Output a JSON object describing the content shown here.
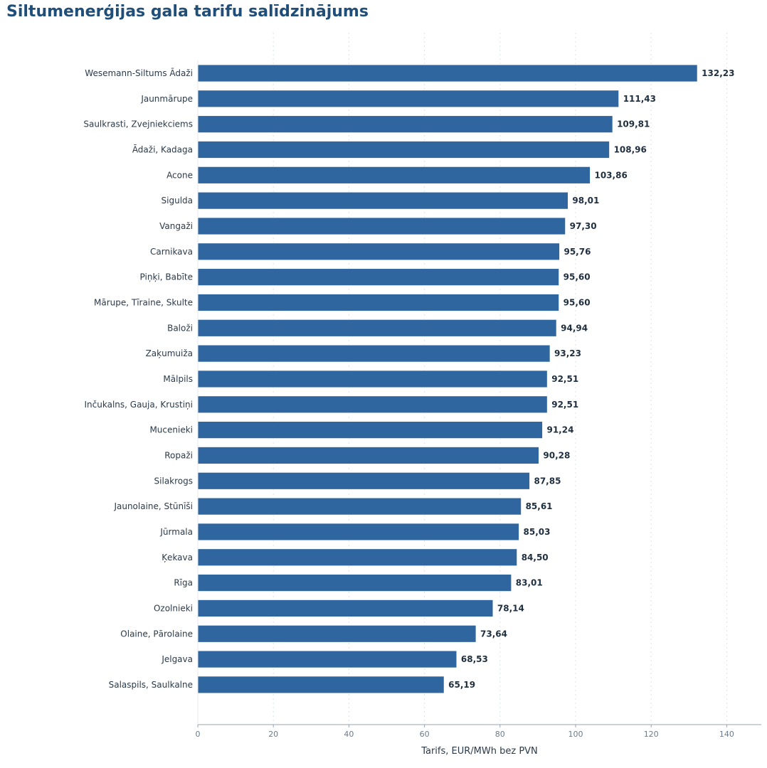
{
  "chart_data": {
    "type": "bar",
    "orientation": "horizontal",
    "title": "Siltumenerģijas gala tarifu salīdzinājums",
    "xlabel": "Tarifs, EUR/MWh bez PVN",
    "ylabel": "",
    "xlim": [
      0,
      150
    ],
    "xticks": [
      0,
      20,
      40,
      60,
      80,
      100,
      120,
      140
    ],
    "grid": "vertical dotted",
    "bar_color": "#30669f",
    "categories": [
      "Wesemann-Siltums Ādaži",
      "Jaunmārupe",
      "Saulkrasti, Zvejniekciems",
      "Ādaži, Kadaga",
      "Acone",
      "Sigulda",
      "Vangaži",
      "Carnikava",
      "Piņķi, Babīte",
      "Mārupe, Tīraine, Skulte",
      "Baloži",
      "Zaķumuiža",
      "Mālpils",
      "Inčukalns, Gauja, Krustiņi",
      "Mucenieki",
      "Ropaži",
      "Silakrogs",
      "Jaunolaine, Stūnīši",
      "Jūrmala",
      "Ķekava",
      "Rīga",
      "Ozolnieki",
      "Olaine, Pārolaine",
      "Jelgava",
      "Salaspils, Saulkalne"
    ],
    "values": [
      132.23,
      111.43,
      109.81,
      108.96,
      103.86,
      98.01,
      97.3,
      95.76,
      95.6,
      95.6,
      94.94,
      93.23,
      92.51,
      92.51,
      91.24,
      90.28,
      87.85,
      85.61,
      85.03,
      84.5,
      83.01,
      78.14,
      73.64,
      68.53,
      65.19
    ],
    "value_labels": [
      "132,23",
      "111,43",
      "109,81",
      "108,96",
      "103,86",
      "98,01",
      "97,30",
      "95,76",
      "95,60",
      "95,60",
      "94,94",
      "93,23",
      "92,51",
      "92,51",
      "91,24",
      "90,28",
      "87,85",
      "85,61",
      "85,03",
      "84,50",
      "83,01",
      "78,14",
      "73,64",
      "68,53",
      "65,19"
    ]
  }
}
